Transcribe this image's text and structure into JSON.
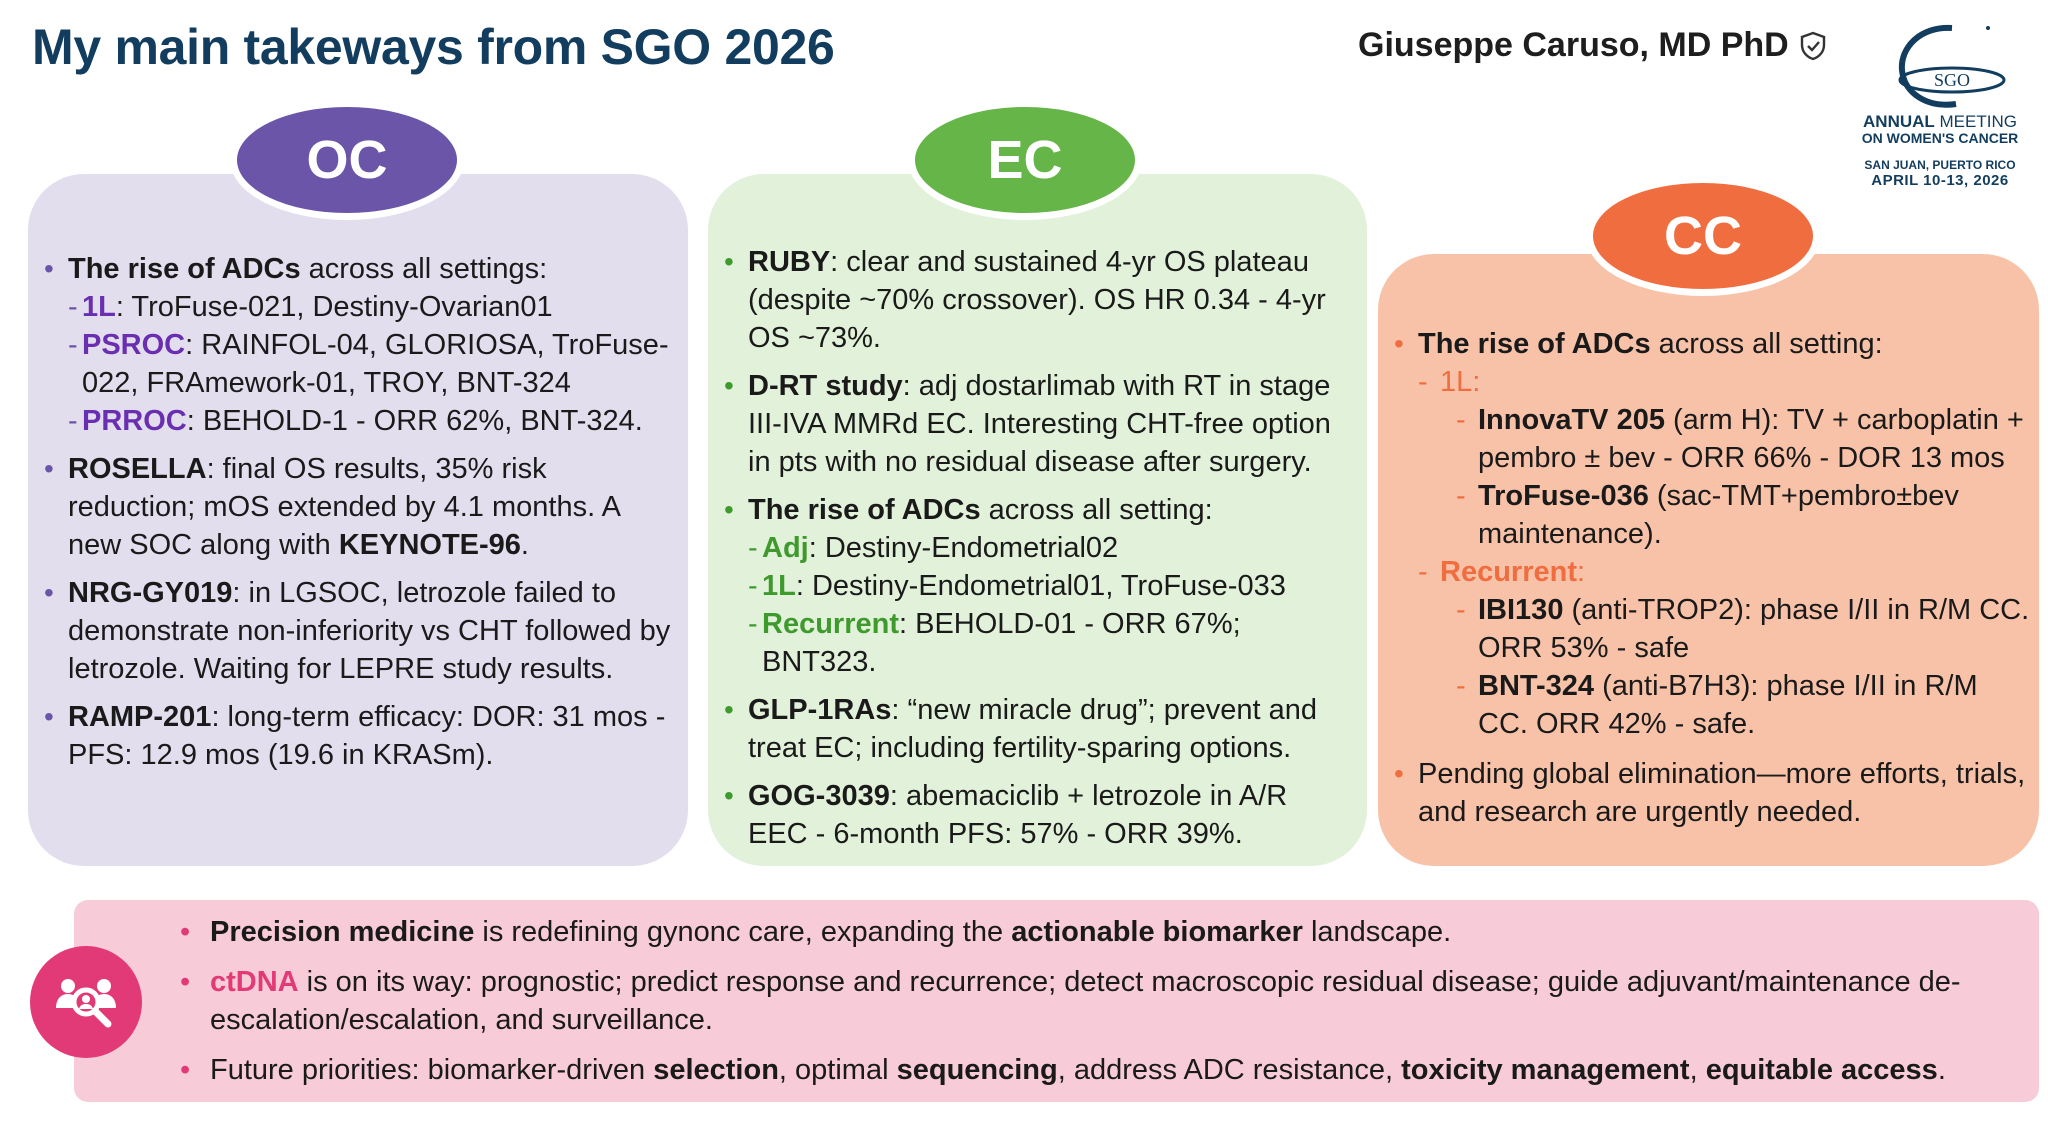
{
  "header": {
    "title": "My main takeways from SGO 2026",
    "author": "Giuseppe Caruso, MD PhD",
    "verified_icon": "shield-check-icon"
  },
  "logo": {
    "mark": "SGO",
    "line1a": "ANNUAL",
    "line1b": " MEETING",
    "line2": "ON WOMEN'S CANCER",
    "line3": "SAN JUAN, PUERTO RICO",
    "line4": "APRIL 10-13, 2026"
  },
  "colors": {
    "title": "#133d5e",
    "oc": "#6a55a8",
    "ec": "#66b548",
    "cc": "#f06d40",
    "bottom_accent": "#e23a76"
  },
  "oc": {
    "label": "OC",
    "b1": {
      "bold": "The rise of ADCs",
      "rest": " across all settings:"
    },
    "b1s1": {
      "kw": "1L",
      "rest": ": TroFuse-021, Destiny-Ovarian01"
    },
    "b1s2": {
      "kw": "PSROC",
      "rest": ": RAINFOL-04, GLORIOSA, TroFuse-022, FRAmework-01, TROY, BNT-324"
    },
    "b1s3": {
      "kw": "PRROC",
      "rest": ": BEHOLD-1 - ORR 62%, BNT-324."
    },
    "b2": {
      "bold": "ROSELLA",
      "rest": ": final OS results, 35% risk reduction; mOS extended by 4.1 months. A new SOC along with ",
      "bold2": "KEYNOTE-96",
      "end": "."
    },
    "b3": {
      "bold": "NRG-GY019",
      "rest": ": in LGSOC, letrozole failed to demonstrate non-inferiority vs CHT followed by letrozole. Waiting for LEPRE study results."
    },
    "b4": {
      "bold": "RAMP-201",
      "rest": ": long-term efficacy: DOR: 31 mos - PFS: 12.9 mos (19.6 in KRASm)."
    }
  },
  "ec": {
    "label": "EC",
    "b1": {
      "bold": "RUBY",
      "rest": ": clear and sustained 4-yr OS plateau (despite ~70% crossover). OS HR 0.34 - 4-yr OS ~73%."
    },
    "b2": {
      "bold": "D-RT study",
      "rest": ": adj dostarlimab with RT in stage III-IVA MMRd EC. Interesting CHT-free option in pts with no residual disease after surgery."
    },
    "b3": {
      "bold": "The rise of ADCs",
      "rest": " across all setting:"
    },
    "b3s1": {
      "kw": "Adj",
      "rest": ": Destiny-Endometrial02"
    },
    "b3s2": {
      "kw": "1L",
      "rest": ": Destiny-Endometrial01, TroFuse-033"
    },
    "b3s3": {
      "kw": "Recurrent",
      "rest": ": BEHOLD-01 - ORR 67%; BNT323."
    },
    "b4": {
      "bold": "GLP-1RAs",
      "rest": ": “new miracle drug”; prevent and treat EC; including fertility-sparing options."
    },
    "b5": {
      "bold": "GOG-3039",
      "rest": ": abemaciclib + letrozole in A/R EEC - 6-month PFS: 57% - ORR 39%."
    }
  },
  "cc": {
    "label": "CC",
    "b1": {
      "bold": "The rise of ADCs",
      "rest": " across all setting:"
    },
    "h1": "1L:",
    "i1": {
      "bold": "InnovaTV 205",
      "rest": " (arm H): TV + carboplatin + pembro ± bev - ORR 66% - DOR 13 mos"
    },
    "i2": {
      "bold": "TroFuse-036",
      "rest": " (sac-TMT+pembro±bev maintenance)."
    },
    "h2": "Recurrent",
    "h2_colon": ":",
    "i3": {
      "bold": "IBI130",
      "rest": " (anti-TROP2): phase I/II in R/M CC. ORR 53% - safe"
    },
    "i4": {
      "bold": "BNT-324",
      "rest": " (anti-B7H3): phase I/II in R/M CC. ORR 42% - safe."
    },
    "b2": "Pending global elimination—more efforts, trials, and research are urgently needed."
  },
  "bottom": {
    "icon": "people-search-icon",
    "p1": {
      "bold": "Precision medicine",
      "mid": " is redefining gynonc care, expanding the ",
      "bold2": "actionable biomarker",
      "end": " landscape."
    },
    "p2": {
      "kw": "ctDNA",
      "rest": " is on its way: prognostic; predict response and recurrence; detect macroscopic residual disease; guide adjuvant/maintenance de-escalation/escalation, and surveillance."
    },
    "p3": {
      "t1": "Future priorities: biomarker-driven ",
      "b1": "selection",
      "t2": ", optimal ",
      "b2": "sequencing",
      "t3": ", address ADC resistance, ",
      "b3": "toxicity management",
      "t4": ", ",
      "b4": "equitable access",
      "t5": "."
    }
  }
}
